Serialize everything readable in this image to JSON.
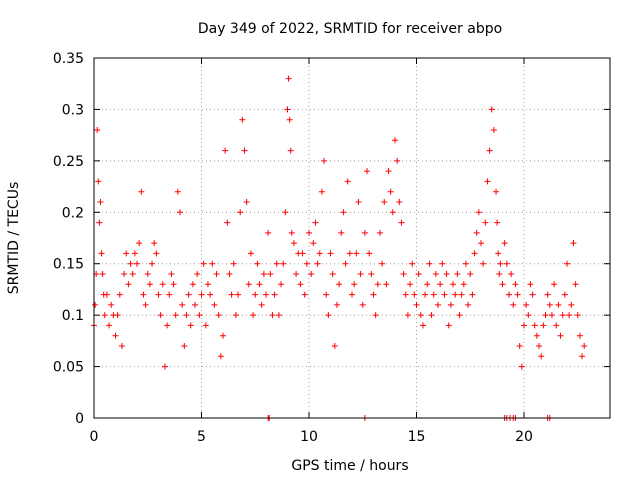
{
  "chart_data": {
    "type": "scatter",
    "title": "Day 349 of 2022, SRMTID for receiver abpo",
    "xlabel": "GPS time / hours",
    "ylabel": "SRMTID / TECUs",
    "xlim": [
      0,
      24
    ],
    "ylim": [
      0,
      0.35
    ],
    "xticks": [
      0,
      5,
      10,
      15,
      20
    ],
    "xtick_labels": [
      "0",
      "5",
      "10",
      "15",
      "20"
    ],
    "yticks": [
      0,
      0.05,
      0.1,
      0.15,
      0.2,
      0.25,
      0.3,
      0.35
    ],
    "ytick_labels": [
      "0",
      "0.05",
      "0.1",
      "0.15",
      "0.2",
      "0.25",
      "0.3",
      "0.35"
    ],
    "grid": true,
    "marker": "plus",
    "series": [
      {
        "name": "SRMTID",
        "color": "#ff0000",
        "x": [
          0.0,
          0.05,
          0.1,
          0.15,
          0.2,
          0.25,
          0.3,
          0.35,
          0.4,
          0.45,
          0.5,
          0.6,
          0.7,
          0.8,
          0.9,
          1.0,
          1.1,
          1.2,
          1.3,
          1.4,
          1.5,
          1.6,
          1.7,
          1.8,
          1.9,
          2.0,
          2.1,
          2.2,
          2.3,
          2.4,
          2.5,
          2.6,
          2.7,
          2.8,
          2.9,
          3.0,
          3.1,
          3.2,
          3.3,
          3.4,
          3.5,
          3.6,
          3.7,
          3.8,
          3.9,
          4.0,
          4.1,
          4.2,
          4.3,
          4.4,
          4.5,
          4.6,
          4.7,
          4.8,
          4.9,
          5.0,
          5.1,
          5.2,
          5.3,
          5.4,
          5.5,
          5.6,
          5.7,
          5.8,
          5.9,
          6.0,
          6.1,
          6.2,
          6.3,
          6.4,
          6.5,
          6.6,
          6.7,
          6.8,
          6.9,
          7.0,
          7.1,
          7.2,
          7.3,
          7.4,
          7.5,
          7.6,
          7.7,
          7.8,
          7.9,
          8.0,
          8.1,
          8.2,
          8.3,
          8.4,
          8.5,
          8.6,
          8.7,
          8.8,
          8.9,
          9.0,
          9.05,
          9.1,
          9.15,
          9.2,
          9.3,
          9.4,
          9.5,
          9.6,
          9.7,
          9.8,
          9.9,
          10.0,
          10.1,
          10.2,
          10.3,
          10.4,
          10.5,
          10.6,
          10.7,
          10.8,
          10.9,
          11.0,
          11.1,
          11.2,
          11.3,
          11.4,
          11.5,
          11.6,
          11.7,
          11.8,
          11.9,
          12.0,
          12.1,
          12.2,
          12.3,
          12.4,
          12.5,
          12.6,
          12.7,
          12.8,
          12.9,
          13.0,
          13.1,
          13.2,
          13.3,
          13.4,
          13.5,
          13.6,
          13.7,
          13.8,
          13.9,
          14.0,
          14.1,
          14.2,
          14.3,
          14.4,
          14.5,
          14.6,
          14.7,
          14.8,
          14.9,
          15.0,
          15.1,
          15.2,
          15.3,
          15.4,
          15.5,
          15.6,
          15.7,
          15.8,
          15.9,
          16.0,
          16.1,
          16.2,
          16.3,
          16.4,
          16.5,
          16.6,
          16.7,
          16.8,
          16.9,
          17.0,
          17.1,
          17.2,
          17.3,
          17.4,
          17.5,
          17.6,
          17.7,
          17.8,
          17.9,
          18.0,
          18.1,
          18.2,
          18.3,
          18.4,
          18.5,
          18.6,
          18.7,
          18.75,
          18.8,
          18.85,
          18.9,
          19.0,
          19.1,
          19.2,
          19.3,
          19.4,
          19.5,
          19.6,
          19.7,
          19.8,
          19.9,
          20.0,
          20.1,
          20.2,
          20.3,
          20.4,
          20.5,
          20.6,
          20.7,
          20.8,
          20.9,
          21.0,
          21.1,
          21.2,
          21.3,
          21.4,
          21.5,
          21.6,
          21.7,
          21.8,
          21.9,
          22.0,
          22.1,
          22.2,
          22.3,
          22.4,
          22.5,
          22.6,
          22.7,
          22.8,
          8.1,
          8.15,
          12.6,
          19.1,
          19.2,
          19.35,
          19.5,
          19.6,
          21.1,
          21.2
        ],
        "y": [
          0.09,
          0.11,
          0.14,
          0.28,
          0.23,
          0.19,
          0.21,
          0.16,
          0.14,
          0.12,
          0.1,
          0.12,
          0.09,
          0.11,
          0.1,
          0.08,
          0.1,
          0.12,
          0.07,
          0.14,
          0.16,
          0.13,
          0.15,
          0.14,
          0.16,
          0.15,
          0.17,
          0.22,
          0.12,
          0.11,
          0.14,
          0.13,
          0.15,
          0.17,
          0.16,
          0.12,
          0.1,
          0.13,
          0.05,
          0.09,
          0.12,
          0.14,
          0.13,
          0.1,
          0.22,
          0.2,
          0.11,
          0.07,
          0.1,
          0.12,
          0.09,
          0.13,
          0.11,
          0.14,
          0.1,
          0.12,
          0.15,
          0.09,
          0.13,
          0.12,
          0.15,
          0.11,
          0.14,
          0.1,
          0.06,
          0.08,
          0.26,
          0.19,
          0.14,
          0.12,
          0.15,
          0.1,
          0.12,
          0.2,
          0.29,
          0.26,
          0.21,
          0.13,
          0.16,
          0.1,
          0.12,
          0.15,
          0.13,
          0.11,
          0.14,
          0.12,
          0.18,
          0.14,
          0.1,
          0.12,
          0.15,
          0.1,
          0.13,
          0.15,
          0.2,
          0.3,
          0.33,
          0.29,
          0.26,
          0.18,
          0.17,
          0.14,
          0.16,
          0.13,
          0.16,
          0.12,
          0.15,
          0.18,
          0.14,
          0.17,
          0.19,
          0.15,
          0.16,
          0.22,
          0.25,
          0.12,
          0.1,
          0.16,
          0.14,
          0.07,
          0.11,
          0.13,
          0.18,
          0.2,
          0.15,
          0.23,
          0.16,
          0.12,
          0.13,
          0.16,
          0.21,
          0.14,
          0.11,
          0.18,
          0.24,
          0.16,
          0.14,
          0.12,
          0.1,
          0.13,
          0.18,
          0.15,
          0.21,
          0.13,
          0.24,
          0.22,
          0.2,
          0.27,
          0.25,
          0.21,
          0.19,
          0.14,
          0.12,
          0.1,
          0.13,
          0.15,
          0.12,
          0.11,
          0.14,
          0.1,
          0.09,
          0.12,
          0.13,
          0.15,
          0.1,
          0.12,
          0.14,
          0.11,
          0.13,
          0.15,
          0.12,
          0.14,
          0.09,
          0.11,
          0.13,
          0.12,
          0.14,
          0.1,
          0.12,
          0.13,
          0.15,
          0.11,
          0.14,
          0.12,
          0.16,
          0.18,
          0.2,
          0.17,
          0.15,
          0.19,
          0.23,
          0.26,
          0.3,
          0.28,
          0.22,
          0.19,
          0.16,
          0.14,
          0.15,
          0.13,
          0.17,
          0.15,
          0.12,
          0.14,
          0.11,
          0.13,
          0.12,
          0.07,
          0.05,
          0.09,
          0.11,
          0.1,
          0.13,
          0.12,
          0.09,
          0.08,
          0.07,
          0.06,
          0.09,
          0.1,
          0.12,
          0.11,
          0.1,
          0.13,
          0.09,
          0.11,
          0.08,
          0.1,
          0.12,
          0.15,
          0.1,
          0.11,
          0.17,
          0.13,
          0.1,
          0.08,
          0.06,
          0.07,
          0.0,
          0.0,
          0.0,
          0.0,
          0.0,
          0.0,
          0.0,
          0.0,
          0.0,
          0.0
        ]
      }
    ]
  }
}
